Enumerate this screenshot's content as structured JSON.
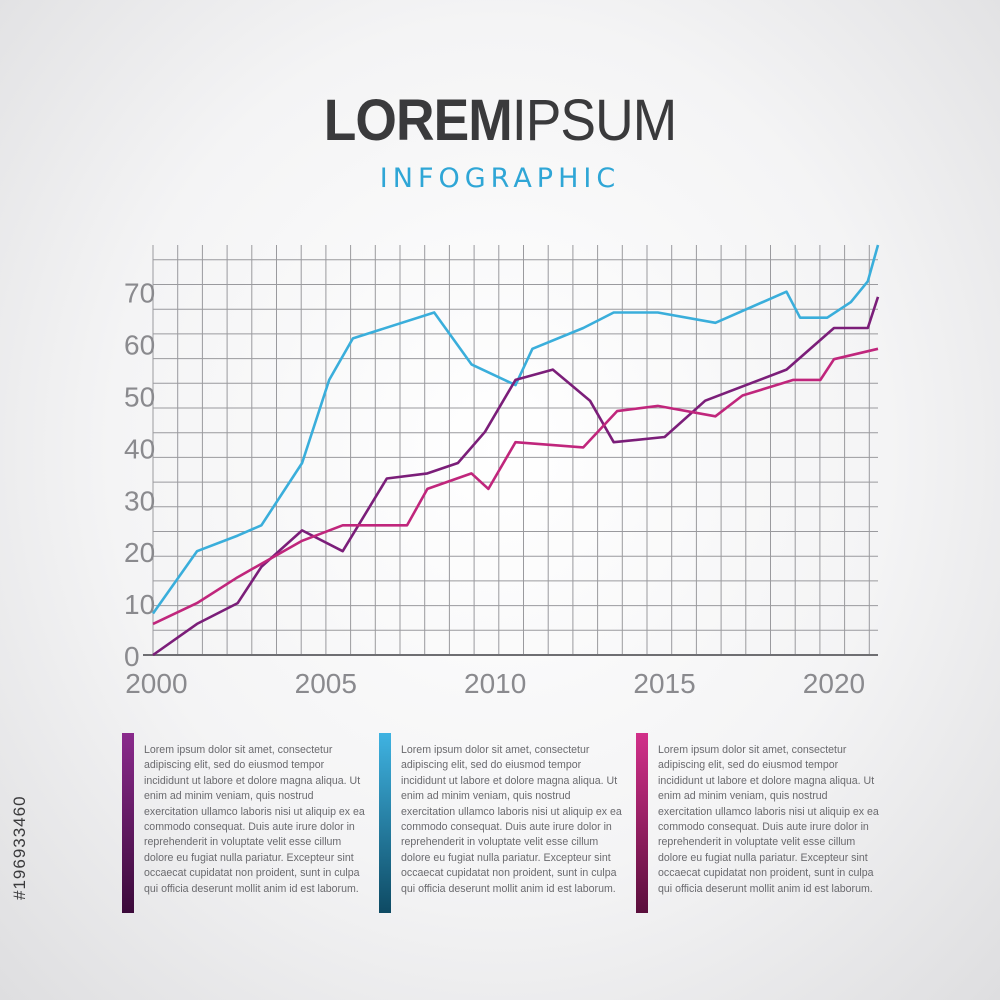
{
  "header": {
    "title_bold": "LOREM",
    "title_light": "IPSUM",
    "subtitle": "INFOGRAPHIC"
  },
  "colors": {
    "blue": "#3aaedb",
    "purple": "#7b1e79",
    "magenta": "#c0267c",
    "grid": "#9a9a9e"
  },
  "chart_data": {
    "type": "line",
    "title": "",
    "xlabel": "",
    "ylabel": "",
    "xlim": [
      1999.9,
      2021.3
    ],
    "ylim": [
      0,
      79
    ],
    "grid": true,
    "x_ticks": [
      2000,
      2005,
      2010,
      2015,
      2020
    ],
    "y_ticks": [
      0,
      10,
      20,
      30,
      40,
      50,
      60,
      70
    ],
    "series": [
      {
        "color": "#3aaedb",
        "x": [
          1999.9,
          2001.2,
          2002.4,
          2003.1,
          2004.3,
          2005.1,
          2005.8,
          2008.2,
          2009.3,
          2010.6,
          2011.1,
          2012.6,
          2013.5,
          2014.8,
          2016.5,
          2018.6,
          2019.0,
          2019.8,
          2020.5,
          2021.0,
          2021.3
        ],
        "y": [
          8,
          20,
          23,
          25,
          37,
          53,
          61,
          66,
          56,
          52,
          59,
          63,
          66,
          66,
          64,
          70,
          65,
          65,
          68,
          72,
          79
        ]
      },
      {
        "color": "#7b1e79",
        "x": [
          1999.9,
          2001.2,
          2002.4,
          2003.1,
          2004.3,
          2005.5,
          2006.8,
          2008.0,
          2008.9,
          2009.7,
          2010.6,
          2011.7,
          2012.8,
          2013.5,
          2015.0,
          2016.2,
          2018.6,
          2020.0,
          2021.0,
          2021.3
        ],
        "y": [
          0,
          6,
          10,
          17,
          24,
          20,
          34,
          35,
          37,
          43,
          53,
          55,
          49,
          41,
          42,
          49,
          55,
          63,
          63,
          69
        ]
      },
      {
        "color": "#c0267c",
        "x": [
          1999.9,
          2001.2,
          2002.4,
          2004.3,
          2005.5,
          2007.4,
          2008.0,
          2009.3,
          2009.8,
          2010.6,
          2012.6,
          2013.6,
          2014.8,
          2016.5,
          2017.3,
          2018.8,
          2019.6,
          2020.0,
          2021.3
        ],
        "y": [
          6,
          10,
          15,
          22,
          25,
          25,
          32,
          35,
          32,
          41,
          40,
          47,
          48,
          46,
          50,
          53,
          53,
          57,
          59
        ]
      }
    ]
  },
  "descriptions": [
    {
      "text": "Lorem ipsum dolor sit amet, consectetur adipiscing elit, sed do eiusmod tempor incididunt ut labore et dolore magna aliqua. Ut enim ad minim veniam, quis nostrud exercitation ullamco laboris nisi ut aliquip ex ea commodo consequat. Duis aute irure dolor in reprehenderit in voluptate velit esse cillum dolore eu fugiat nulla pariatur. Excepteur sint occaecat cupidatat non proident, sunt in culpa qui officia deserunt mollit anim id est laborum.",
      "bar_top": "#8a2a8c",
      "bar_bottom": "#3b0a3a"
    },
    {
      "text": "Lorem ipsum dolor sit amet, consectetur adipiscing elit, sed do eiusmod tempor incididunt ut labore et dolore magna aliqua. Ut enim ad minim veniam, quis nostrud exercitation ullamco laboris nisi ut aliquip ex ea commodo consequat. Duis aute irure dolor in reprehenderit in voluptate velit esse cillum dolore eu fugiat nulla pariatur. Excepteur sint occaecat cupidatat non proident, sunt in culpa qui officia deserunt mollit anim id est laborum.",
      "bar_top": "#3fb3e2",
      "bar_bottom": "#0e4a63"
    },
    {
      "text": "Lorem ipsum dolor sit amet, consectetur adipiscing elit, sed do eiusmod tempor incididunt ut labore et dolore magna aliqua. Ut enim ad minim veniam, quis nostrud exercitation ullamco laboris nisi ut aliquip ex ea commodo consequat. Duis aute irure dolor in reprehenderit in voluptate velit esse cillum dolore eu fugiat nulla pariatur. Excepteur sint occaecat cupidatat non proident, sunt in culpa qui officia deserunt mollit anim id est laborum.",
      "bar_top": "#d2308a",
      "bar_bottom": "#5a0f3c"
    }
  ],
  "watermark": "#196933460"
}
